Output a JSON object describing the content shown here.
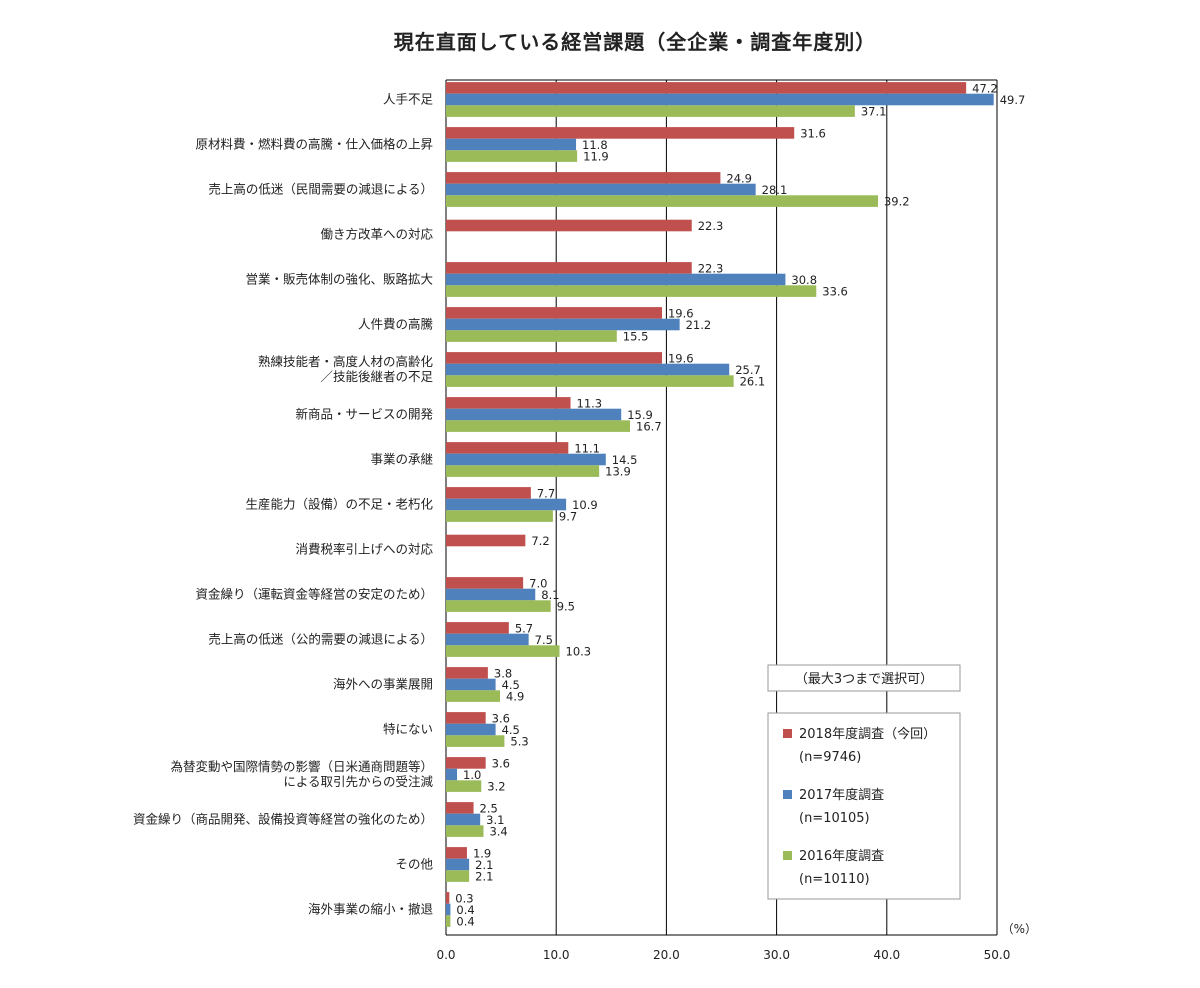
{
  "chart_data": {
    "type": "bar",
    "orientation": "horizontal",
    "title": "現在直面している経営課題（全企業・調査年度別）",
    "unit_label": "（%）",
    "xlim": [
      0,
      50
    ],
    "x_ticks": [
      "0.0",
      "10.0",
      "20.0",
      "30.0",
      "40.0",
      "50.0"
    ],
    "grid": true,
    "categories": [
      [
        "人手不足"
      ],
      [
        "原材料費・燃料費の高騰・仕入価格の上昇"
      ],
      [
        "売上高の低迷（民間需要の減退による）"
      ],
      [
        "働き方改革への対応"
      ],
      [
        "営業・販売体制の強化、販路拡大"
      ],
      [
        "人件費の高騰"
      ],
      [
        "熟練技能者・高度人材の高齢化",
        "／技能後継者の不足"
      ],
      [
        "新商品・サービスの開発"
      ],
      [
        "事業の承継"
      ],
      [
        "生産能力（設備）の不足・老朽化"
      ],
      [
        "消費税率引上げへの対応"
      ],
      [
        "資金繰り（運転資金等経営の安定のため）"
      ],
      [
        "売上高の低迷（公的需要の減退による）"
      ],
      [
        "海外への事業展開"
      ],
      [
        "特にない"
      ],
      [
        "為替変動や国際情勢の影響（日米通商問題等）",
        "による取引先からの受注減"
      ],
      [
        "資金繰り（商品開発、設備投資等経営の強化のため）"
      ],
      [
        "その他"
      ],
      [
        "海外事業の縮小・撤退"
      ]
    ],
    "series": [
      {
        "name": "2018年度調査（今回）",
        "n": "(n=9746)",
        "color": "#c0504d",
        "values": [
          47.2,
          31.6,
          24.9,
          22.3,
          22.3,
          19.6,
          19.6,
          11.3,
          11.1,
          7.7,
          7.2,
          7.0,
          5.7,
          3.8,
          3.6,
          3.6,
          2.5,
          1.9,
          0.3
        ]
      },
      {
        "name": "2017年度調査",
        "n": "(n=10105)",
        "color": "#4f81bd",
        "values": [
          49.7,
          11.8,
          28.1,
          null,
          30.8,
          21.2,
          25.7,
          15.9,
          14.5,
          10.9,
          null,
          8.1,
          7.5,
          4.5,
          4.5,
          1.0,
          3.1,
          2.1,
          0.4
        ]
      },
      {
        "name": "2016年度調査",
        "n": "(n=10110)",
        "color": "#9bbb59",
        "values": [
          37.1,
          11.9,
          39.2,
          null,
          33.6,
          15.5,
          26.1,
          16.7,
          13.9,
          9.7,
          null,
          9.5,
          10.3,
          4.9,
          5.3,
          3.2,
          3.4,
          2.1,
          0.4
        ]
      }
    ],
    "legend_note": "（最大3つまで選択可）",
    "legend_position": "bottom-right"
  }
}
